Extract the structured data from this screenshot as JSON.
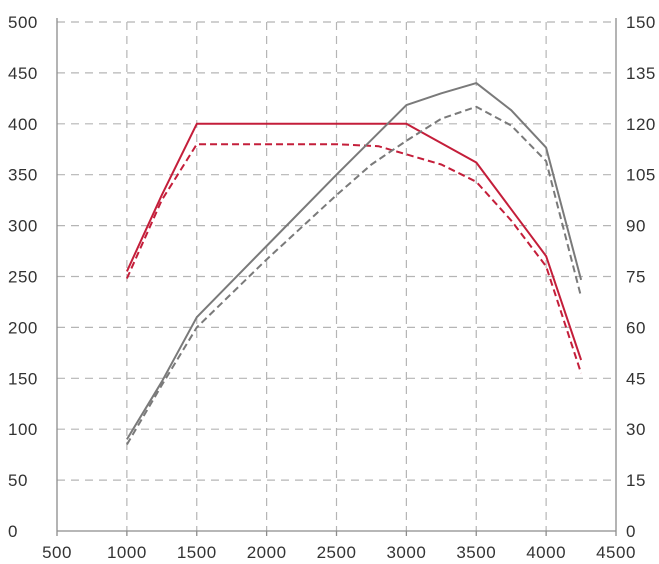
{
  "chart_data": {
    "type": "line",
    "title": "",
    "xlabel": "",
    "ylabel": "",
    "y2label": "",
    "grid": true,
    "legend": "none",
    "xlim": [
      500,
      4500
    ],
    "ylim": [
      0,
      500
    ],
    "y2lim": [
      0,
      150
    ],
    "x_ticks": [
      "500",
      "1000",
      "1500",
      "2000",
      "2500",
      "3000",
      "3500",
      "4000",
      "4500"
    ],
    "y_ticks": [
      "0",
      "50",
      "100",
      "150",
      "200",
      "250",
      "300",
      "350",
      "400",
      "450",
      "500"
    ],
    "y2_ticks": [
      "0",
      "15",
      "30",
      "45",
      "60",
      "75",
      "90",
      "105",
      "120",
      "135",
      "150"
    ],
    "series": [
      {
        "axis": "left",
        "color": "#c41e3a",
        "dash": false,
        "points": [
          [
            1000,
            255
          ],
          [
            1250,
            330
          ],
          [
            1500,
            400
          ],
          [
            2000,
            400
          ],
          [
            2500,
            400
          ],
          [
            3000,
            400
          ],
          [
            3500,
            362
          ],
          [
            4000,
            270
          ],
          [
            4250,
            168
          ]
        ]
      },
      {
        "axis": "left",
        "color": "#c41e3a",
        "dash": true,
        "points": [
          [
            1000,
            248
          ],
          [
            1250,
            325
          ],
          [
            1500,
            380
          ],
          [
            2000,
            380
          ],
          [
            2500,
            380
          ],
          [
            2800,
            378
          ],
          [
            3250,
            360
          ],
          [
            3500,
            343
          ],
          [
            3750,
            305
          ],
          [
            4000,
            260
          ],
          [
            4250,
            155
          ]
        ]
      },
      {
        "axis": "right",
        "color": "#7a7a7a",
        "dash": false,
        "points": [
          [
            1000,
            27
          ],
          [
            1250,
            44
          ],
          [
            1500,
            63
          ],
          [
            1750,
            73.5
          ],
          [
            2000,
            84
          ],
          [
            2500,
            105
          ],
          [
            3000,
            125.5
          ],
          [
            3250,
            129
          ],
          [
            3500,
            132
          ],
          [
            3750,
            124
          ],
          [
            4000,
            113
          ],
          [
            4250,
            74
          ]
        ]
      },
      {
        "axis": "right",
        "color": "#7a7a7a",
        "dash": true,
        "points": [
          [
            1000,
            25.5
          ],
          [
            1250,
            43
          ],
          [
            1500,
            60
          ],
          [
            2000,
            80
          ],
          [
            2500,
            99
          ],
          [
            2750,
            108
          ],
          [
            3000,
            115
          ],
          [
            3250,
            121.5
          ],
          [
            3500,
            125
          ],
          [
            3750,
            119.5
          ],
          [
            4000,
            109
          ],
          [
            4250,
            69
          ]
        ]
      }
    ]
  }
}
